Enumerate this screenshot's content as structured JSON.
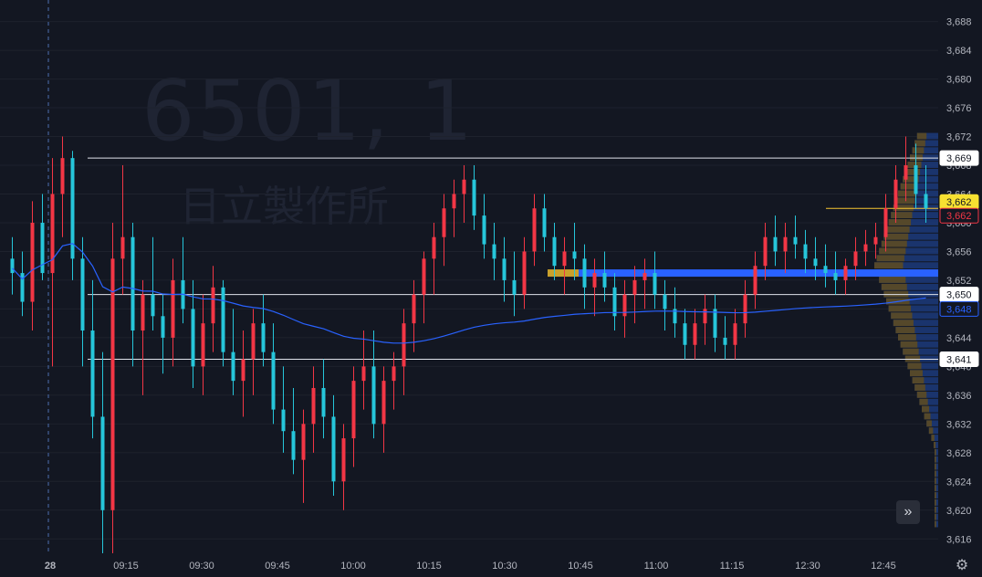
{
  "watermark": {
    "symbol": "6501, 1",
    "name": "日立製作所"
  },
  "colors": {
    "up": "#f23645",
    "down": "#22ab94",
    "wick_up": "#f23645",
    "wick_down": "#26c6da",
    "vwap": "#2962ff",
    "hline": "#e0e3eb",
    "poc_blue": "#2962ff",
    "poc_gold": "#c8a02c",
    "background": "#131722",
    "grid": "#1e222d",
    "axis_text": "#b2b5be"
  },
  "icons": {
    "scroll": "double-chevron-right-icon",
    "settings": "gear-icon"
  },
  "chart_data": {
    "type": "candlestick",
    "timeframe_minutes": 1,
    "y_ticks": [
      3616,
      3620,
      3624,
      3628,
      3632,
      3636,
      3640,
      3644,
      3648,
      3652,
      3656,
      3660,
      3664,
      3668,
      3672,
      3676,
      3680,
      3684,
      3688
    ],
    "ylim": [
      3614,
      3691
    ],
    "x_ticks": [
      "28",
      "09:15",
      "09:30",
      "09:45",
      "10:00",
      "10:15",
      "10:30",
      "10:45",
      "11:00",
      "11:15",
      "12:30",
      "12:45"
    ],
    "horizontal_lines": [
      3669,
      3650,
      3641
    ],
    "price_labels": [
      {
        "text": "3,669",
        "kind": "line"
      },
      {
        "text": "3,662",
        "kind": "highlight-yellow"
      },
      {
        "text": "3,662",
        "kind": "last-price"
      },
      {
        "text": "3,650",
        "kind": "line"
      },
      {
        "text": "3,648",
        "kind": "vwap"
      },
      {
        "text": "3,641",
        "kind": "line"
      }
    ],
    "poc_level": 3653,
    "yellow_line_level": 3662,
    "candles": [
      [
        3655,
        3658,
        3650,
        3653
      ],
      [
        3653,
        3656,
        3647,
        3649
      ],
      [
        3649,
        3663,
        3645,
        3660
      ],
      [
        3660,
        3664,
        3652,
        3653
      ],
      [
        3653,
        3669,
        3640,
        3664
      ],
      [
        3664,
        3672,
        3658,
        3669
      ],
      [
        3669,
        3670,
        3652,
        3655
      ],
      [
        3655,
        3658,
        3640,
        3645
      ],
      [
        3645,
        3652,
        3630,
        3633
      ],
      [
        3633,
        3642,
        3614,
        3620
      ],
      [
        3620,
        3660,
        3614,
        3655
      ],
      [
        3655,
        3668,
        3650,
        3658
      ],
      [
        3658,
        3660,
        3640,
        3645
      ],
      [
        3645,
        3652,
        3636,
        3650
      ],
      [
        3650,
        3658,
        3645,
        3647
      ],
      [
        3647,
        3650,
        3639,
        3644
      ],
      [
        3644,
        3655,
        3640,
        3652
      ],
      [
        3652,
        3658,
        3646,
        3648
      ],
      [
        3648,
        3652,
        3637,
        3640
      ],
      [
        3640,
        3650,
        3636,
        3646
      ],
      [
        3646,
        3654,
        3642,
        3651
      ],
      [
        3651,
        3652,
        3640,
        3642
      ],
      [
        3642,
        3648,
        3636,
        3638
      ],
      [
        3638,
        3645,
        3633,
        3641
      ],
      [
        3641,
        3648,
        3636,
        3646
      ],
      [
        3646,
        3650,
        3640,
        3642
      ],
      [
        3642,
        3646,
        3632,
        3634
      ],
      [
        3634,
        3640,
        3628,
        3631
      ],
      [
        3631,
        3637,
        3625,
        3627
      ],
      [
        3627,
        3634,
        3621,
        3632
      ],
      [
        3632,
        3640,
        3628,
        3637
      ],
      [
        3637,
        3641,
        3630,
        3633
      ],
      [
        3633,
        3636,
        3622,
        3624
      ],
      [
        3624,
        3632,
        3620,
        3630
      ],
      [
        3630,
        3640,
        3626,
        3638
      ],
      [
        3638,
        3645,
        3634,
        3640
      ],
      [
        3640,
        3645,
        3630,
        3632
      ],
      [
        3632,
        3640,
        3628,
        3638
      ],
      [
        3638,
        3642,
        3634,
        3640
      ],
      [
        3640,
        3648,
        3636,
        3646
      ],
      [
        3646,
        3652,
        3642,
        3650
      ],
      [
        3650,
        3656,
        3646,
        3655
      ],
      [
        3655,
        3660,
        3650,
        3658
      ],
      [
        3658,
        3664,
        3654,
        3662
      ],
      [
        3662,
        3666,
        3658,
        3664
      ],
      [
        3664,
        3668,
        3660,
        3666
      ],
      [
        3666,
        3668,
        3659,
        3661
      ],
      [
        3661,
        3664,
        3655,
        3657
      ],
      [
        3657,
        3660,
        3652,
        3655
      ],
      [
        3655,
        3658,
        3649,
        3652
      ],
      [
        3652,
        3656,
        3647,
        3650
      ],
      [
        3650,
        3658,
        3648,
        3656
      ],
      [
        3656,
        3664,
        3654,
        3662
      ],
      [
        3662,
        3664,
        3656,
        3658
      ],
      [
        3658,
        3660,
        3652,
        3654
      ],
      [
        3654,
        3658,
        3650,
        3656
      ],
      [
        3656,
        3660,
        3652,
        3655
      ],
      [
        3655,
        3657,
        3648,
        3651
      ],
      [
        3651,
        3655,
        3647,
        3653
      ],
      [
        3653,
        3656,
        3649,
        3651
      ],
      [
        3651,
        3653,
        3645,
        3647
      ],
      [
        3647,
        3652,
        3644,
        3650
      ],
      [
        3650,
        3654,
        3646,
        3652
      ],
      [
        3652,
        3655,
        3648,
        3653
      ],
      [
        3653,
        3656,
        3648,
        3650
      ],
      [
        3650,
        3652,
        3645,
        3648
      ],
      [
        3648,
        3651,
        3644,
        3646
      ],
      [
        3646,
        3648,
        3641,
        3643
      ],
      [
        3643,
        3648,
        3641,
        3646
      ],
      [
        3646,
        3650,
        3643,
        3648
      ],
      [
        3648,
        3650,
        3642,
        3644
      ],
      [
        3644,
        3647,
        3641,
        3643
      ],
      [
        3643,
        3648,
        3641,
        3646
      ],
      [
        3646,
        3652,
        3644,
        3650
      ],
      [
        3650,
        3656,
        3648,
        3654
      ],
      [
        3654,
        3660,
        3652,
        3658
      ],
      [
        3658,
        3661,
        3654,
        3656
      ],
      [
        3656,
        3660,
        3653,
        3658
      ],
      [
        3658,
        3661,
        3655,
        3657
      ],
      [
        3657,
        3659,
        3653,
        3655
      ],
      [
        3655,
        3658,
        3652,
        3654
      ],
      [
        3654,
        3657,
        3651,
        3653
      ],
      [
        3653,
        3656,
        3650,
        3652
      ],
      [
        3652,
        3655,
        3650,
        3654
      ],
      [
        3654,
        3658,
        3652,
        3656
      ],
      [
        3656,
        3659,
        3654,
        3657
      ],
      [
        3657,
        3660,
        3655,
        3658
      ],
      [
        3658,
        3664,
        3656,
        3662
      ],
      [
        3662,
        3668,
        3660,
        3666
      ],
      [
        3666,
        3672,
        3663,
        3668
      ],
      [
        3668,
        3671,
        3662,
        3664
      ],
      [
        3664,
        3668,
        3660,
        3662
      ]
    ]
  }
}
